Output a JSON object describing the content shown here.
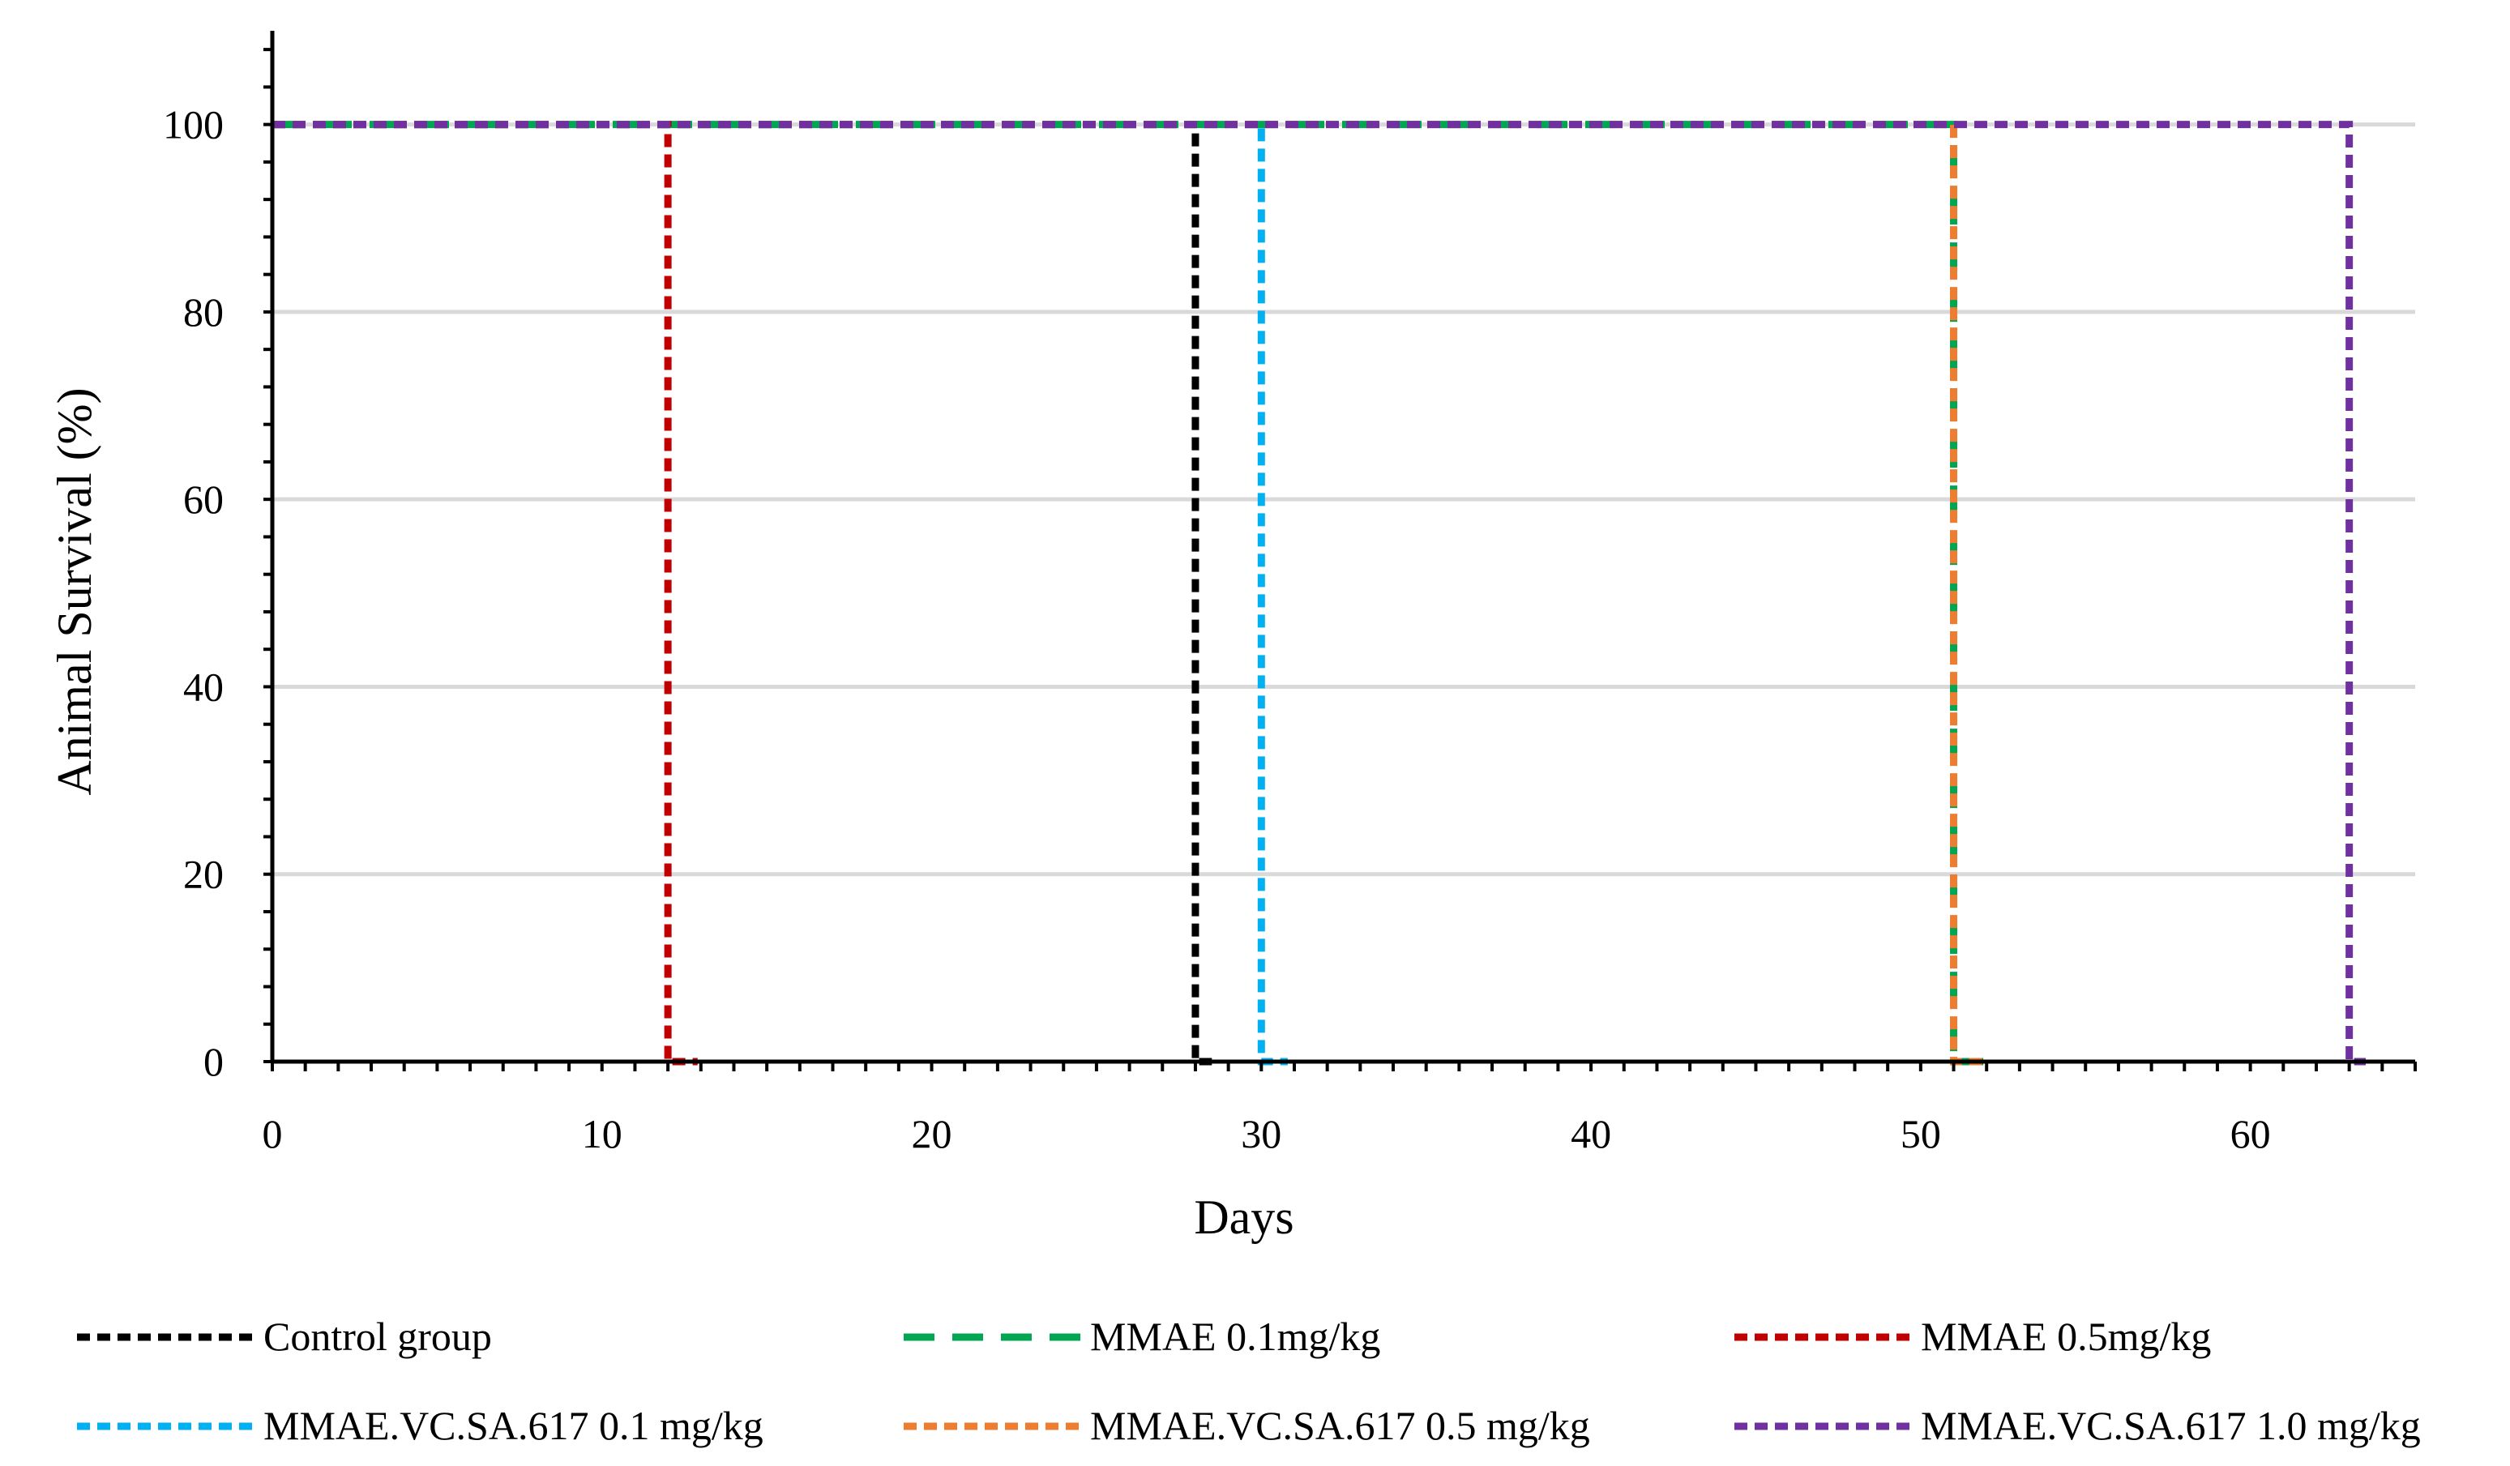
{
  "chart_data": {
    "type": "line",
    "title": "",
    "xlabel": "Days",
    "ylabel": "Animal Survival (%)",
    "xlim": [
      0,
      65
    ],
    "ylim": [
      0,
      110
    ],
    "xticks": [
      0,
      10,
      20,
      30,
      40,
      50,
      60
    ],
    "yticks": [
      0,
      20,
      40,
      60,
      80,
      100
    ],
    "grid": "horizontal",
    "legend_position": "bottom",
    "series": [
      {
        "name": "Control group",
        "color": "#000000",
        "dash": "short",
        "x": [
          0,
          28,
          28,
          28.5
        ],
        "y": [
          100,
          100,
          0,
          0
        ]
      },
      {
        "name": "MMAE 0.1mg/kg",
        "color": "#00A651",
        "dash": "long",
        "x": [
          0,
          51,
          51,
          51.9
        ],
        "y": [
          100,
          100,
          0,
          0
        ]
      },
      {
        "name": "MMAE 0.5mg/kg",
        "color": "#C00000",
        "dash": "short",
        "x": [
          0,
          12,
          12,
          12.9
        ],
        "y": [
          100,
          100,
          0,
          0
        ]
      },
      {
        "name": "MMAE.VC.SA.617 0.1 mg/kg",
        "color": "#00B0F0",
        "dash": "short",
        "x": [
          0,
          30,
          30,
          30.8
        ],
        "y": [
          100,
          100,
          0,
          0
        ]
      },
      {
        "name": "MMAE.VC.SA.617 0.5 mg/kg",
        "color": "#ED7D31",
        "dash": "short",
        "x": [
          0,
          51,
          51,
          51.9
        ],
        "y": [
          100,
          100,
          0,
          0
        ]
      },
      {
        "name": "MMAE.VC.SA.617 1.0 mg/kg",
        "color": "#7030A0",
        "dash": "short",
        "x": [
          0,
          63,
          63,
          63.5
        ],
        "y": [
          100,
          100,
          0,
          0
        ]
      }
    ]
  }
}
